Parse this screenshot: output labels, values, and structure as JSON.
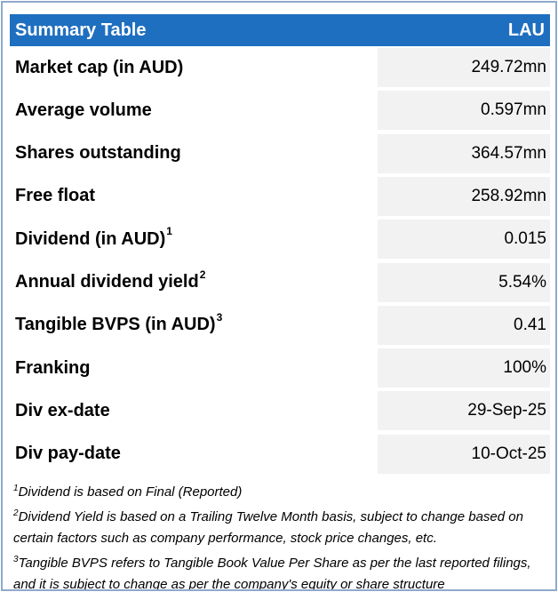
{
  "header": {
    "title": "Summary Table",
    "ticker": "LAU"
  },
  "table": {
    "rows": [
      {
        "label": "Market cap (in AUD)",
        "value": "249.72mn"
      },
      {
        "label": "Average volume",
        "value": "0.597mn"
      },
      {
        "label": "Shares outstanding",
        "value": "364.57mn"
      },
      {
        "label": "Free float",
        "value": "258.92mn"
      },
      {
        "label": "Dividend (in AUD)",
        "sup": "1",
        "value": "0.015"
      },
      {
        "label": "Annual dividend yield",
        "sup": "2",
        "value": "5.54%"
      },
      {
        "label": "Tangible BVPS (in AUD)",
        "sup": "3",
        "value": "0.41"
      },
      {
        "label": "Franking",
        "value": "100%"
      },
      {
        "label": "Div ex-date",
        "value": "29-Sep-25"
      },
      {
        "label": "Div pay-date",
        "value": "10-Oct-25"
      }
    ]
  },
  "footnotes": [
    {
      "number": "1",
      "text": "Dividend is based on Final (Reported)"
    },
    {
      "number": "2",
      "text": "Dividend Yield is based on a Trailing Twelve Month basis, subject to change based on certain factors such as company performance, stock price changes, etc."
    },
    {
      "number": "3",
      "text": "Tangible BVPS refers to Tangible Book Value Per Share as per the last reported filings, and it is subject to change as per the company's equity or share structure"
    }
  ]
}
